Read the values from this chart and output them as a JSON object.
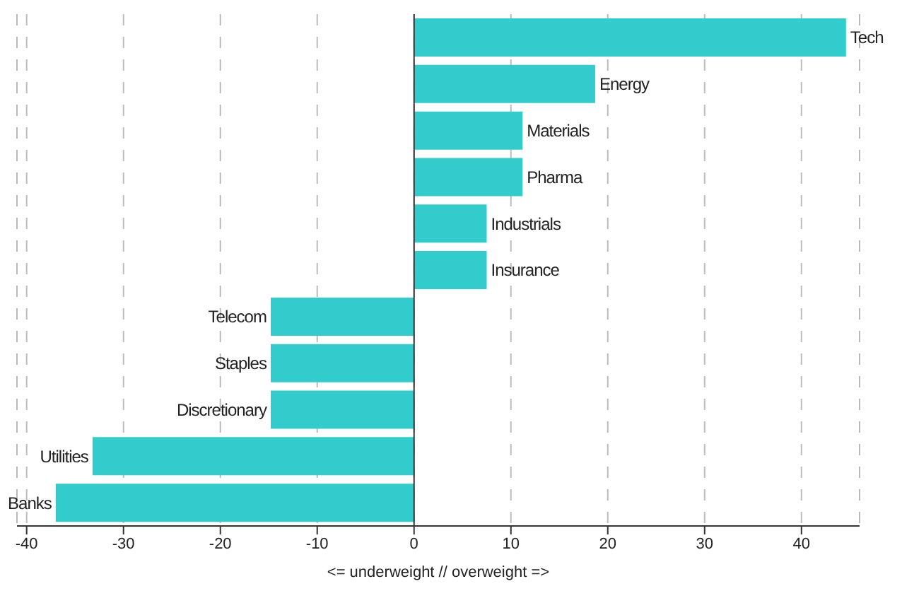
{
  "chart_data": {
    "type": "bar",
    "orientation": "horizontal",
    "xlabel": "<= underweight // overweight =>",
    "categories": [
      "Tech",
      "Energy",
      "Materials",
      "Pharma",
      "Industrials",
      "Insurance",
      "Telecom",
      "Staples",
      "Discretionary",
      "Utilities",
      "Banks"
    ],
    "values": [
      44.6,
      18.7,
      11.2,
      11.2,
      7.5,
      7.5,
      -14.8,
      -14.8,
      -14.8,
      -33.2,
      -37.0
    ],
    "color": "#33cccc",
    "xlim": [
      -41,
      46
    ],
    "xticks": [
      -40,
      -30,
      -20,
      -10,
      0,
      10,
      20,
      30,
      40
    ],
    "grid": "x"
  }
}
